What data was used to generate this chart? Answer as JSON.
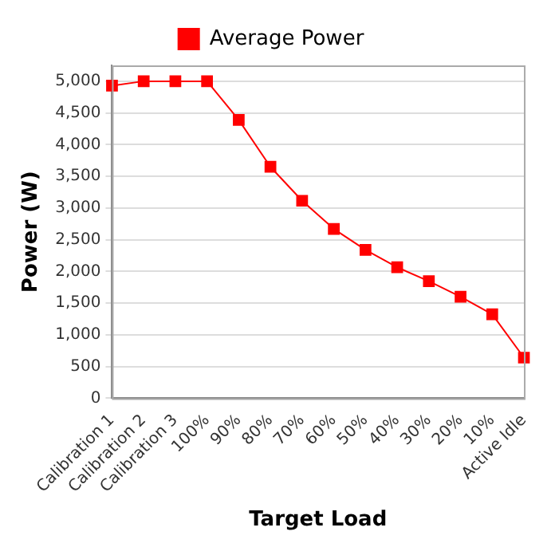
{
  "chart_data": {
    "type": "line",
    "xlabel": "Target Load",
    "ylabel": "Power (W)",
    "categories": [
      "Calibration 1",
      "Calibration 2",
      "Calibration 3",
      "100%",
      "90%",
      "80%",
      "70%",
      "60%",
      "50%",
      "40%",
      "30%",
      "20%",
      "10%",
      "Active Idle"
    ],
    "series": [
      {
        "name": "Average Power",
        "color": "#ff0000",
        "values": [
          4930,
          5000,
          5000,
          5000,
          4390,
          3650,
          3115,
          2670,
          2340,
          2065,
          1845,
          1600,
          1325,
          640
        ]
      }
    ],
    "ylim": [
      0,
      5250
    ],
    "yticks": [
      {
        "value": 0,
        "label": "0"
      },
      {
        "value": 500,
        "label": "500"
      },
      {
        "value": 1000,
        "label": "1,000"
      },
      {
        "value": 1500,
        "label": "1,500"
      },
      {
        "value": 2000,
        "label": "2,000"
      },
      {
        "value": 2500,
        "label": "2,500"
      },
      {
        "value": 3000,
        "label": "3,000"
      },
      {
        "value": 3500,
        "label": "3,500"
      },
      {
        "value": 4000,
        "label": "4,000"
      },
      {
        "value": 4500,
        "label": "4,500"
      },
      {
        "value": 5000,
        "label": "5,000"
      }
    ],
    "grid": "y",
    "legend": "top",
    "marker": "square",
    "line_style": "solid"
  }
}
